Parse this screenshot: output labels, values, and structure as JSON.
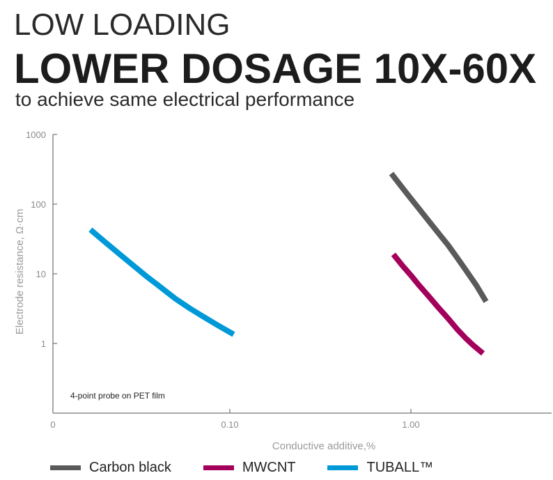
{
  "header": {
    "kicker": "LOW LOADING",
    "headline": "LOWER DOSAGE 10X-60X",
    "subhead": "to achieve same electrical performance"
  },
  "chart_data": {
    "type": "line",
    "xlabel": "Conductive additive,%",
    "ylabel": "Electrode resistance, Ω·cm",
    "x_scale": "log",
    "y_scale": "log",
    "x_ticks": [
      "0",
      "0.10",
      "1.00"
    ],
    "y_ticks": [
      "1",
      "10",
      "100",
      "1000"
    ],
    "ylim": [
      0.1,
      1000
    ],
    "grid": false,
    "legend_position": "bottom",
    "annotation": "4-point probe on PET film",
    "series": [
      {
        "name": "Carbon black",
        "color": "#5a5a5a",
        "x": [
          0.78,
          0.9,
          1.0,
          1.1,
          1.25,
          1.4,
          1.6,
          1.8,
          2.0,
          2.3,
          2.6
        ],
        "y": [
          275,
          170,
          120,
          88,
          58,
          40,
          26,
          17,
          11.5,
          6.8,
          4
        ]
      },
      {
        "name": "MWCNT",
        "color": "#a3005b",
        "x": [
          0.8,
          0.9,
          1.0,
          1.1,
          1.25,
          1.4,
          1.6,
          1.8,
          2.0,
          2.2,
          2.5
        ],
        "y": [
          19,
          13,
          9.5,
          7,
          4.8,
          3.4,
          2.3,
          1.6,
          1.2,
          0.95,
          0.72
        ]
      },
      {
        "name": "TUBALL™",
        "color": "#0099d8",
        "x": [
          0.017,
          0.02,
          0.025,
          0.03,
          0.035,
          0.04,
          0.05,
          0.06,
          0.07,
          0.085,
          0.105
        ],
        "y": [
          43,
          30,
          18.5,
          12.5,
          9,
          6.9,
          4.4,
          3.2,
          2.5,
          1.85,
          1.35
        ]
      }
    ]
  }
}
